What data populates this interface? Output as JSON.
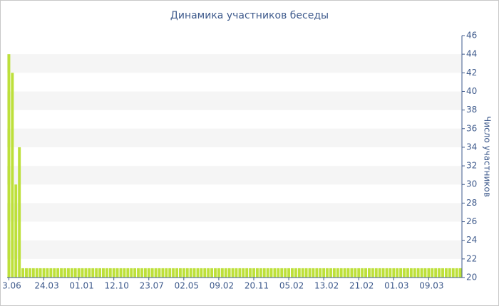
{
  "chart_data": {
    "type": "bar",
    "title": "Динамика участников беседы",
    "y_label": "Число участников",
    "categories": [
      "3.06",
      null,
      null,
      null,
      null,
      null,
      null,
      null,
      null,
      null,
      "24.03",
      null,
      null,
      null,
      null,
      null,
      null,
      null,
      null,
      null,
      "01.01",
      null,
      null,
      null,
      null,
      null,
      null,
      null,
      null,
      null,
      "12.10",
      null,
      null,
      null,
      null,
      null,
      null,
      null,
      null,
      null,
      "23.07",
      null,
      null,
      null,
      null,
      null,
      null,
      null,
      null,
      null,
      "02.05",
      null,
      null,
      null,
      null,
      null,
      null,
      null,
      null,
      null,
      "09.02",
      null,
      null,
      null,
      null,
      null,
      null,
      null,
      null,
      null,
      "20.11",
      null,
      null,
      null,
      null,
      null,
      null,
      null,
      null,
      null,
      "05.02",
      null,
      null,
      null,
      null,
      null,
      null,
      null,
      null,
      null,
      "13.02",
      null,
      null,
      null,
      null,
      null,
      null,
      null,
      null,
      null,
      "21.02",
      null,
      null,
      null,
      null,
      null,
      null,
      null,
      null,
      null,
      "01.03",
      null,
      null,
      null,
      null,
      null,
      null,
      null,
      null,
      null,
      "09.03",
      null,
      null,
      null,
      null,
      null,
      null,
      null,
      null,
      null
    ],
    "values": [
      44,
      42,
      30,
      34,
      21,
      21,
      21,
      21,
      21,
      21,
      21,
      21,
      21,
      21,
      21,
      21,
      21,
      21,
      21,
      21,
      21,
      21,
      21,
      21,
      21,
      21,
      21,
      21,
      21,
      21,
      21,
      21,
      21,
      21,
      21,
      21,
      21,
      21,
      21,
      21,
      21,
      21,
      21,
      21,
      21,
      21,
      21,
      21,
      21,
      21,
      21,
      21,
      21,
      21,
      21,
      21,
      21,
      21,
      21,
      21,
      21,
      21,
      21,
      21,
      21,
      21,
      21,
      21,
      21,
      21,
      21,
      21,
      21,
      21,
      21,
      21,
      21,
      21,
      21,
      21,
      21,
      21,
      21,
      21,
      21,
      21,
      21,
      21,
      21,
      21,
      21,
      21,
      21,
      21,
      21,
      21,
      21,
      21,
      21,
      21,
      21,
      21,
      21,
      21,
      21,
      21,
      21,
      21,
      21,
      21,
      21,
      21,
      21,
      21,
      21,
      21,
      21,
      21,
      21,
      21,
      21,
      21,
      21,
      21,
      21,
      21,
      21,
      21,
      21,
      21
    ],
    "color": "#bde03a",
    "ylim": [
      20,
      46
    ],
    "yticks": [
      20,
      22,
      24,
      26,
      28,
      30,
      32,
      34,
      36,
      38,
      40,
      42,
      44,
      46
    ],
    "grid": "bands",
    "y_axis_side": "right"
  }
}
